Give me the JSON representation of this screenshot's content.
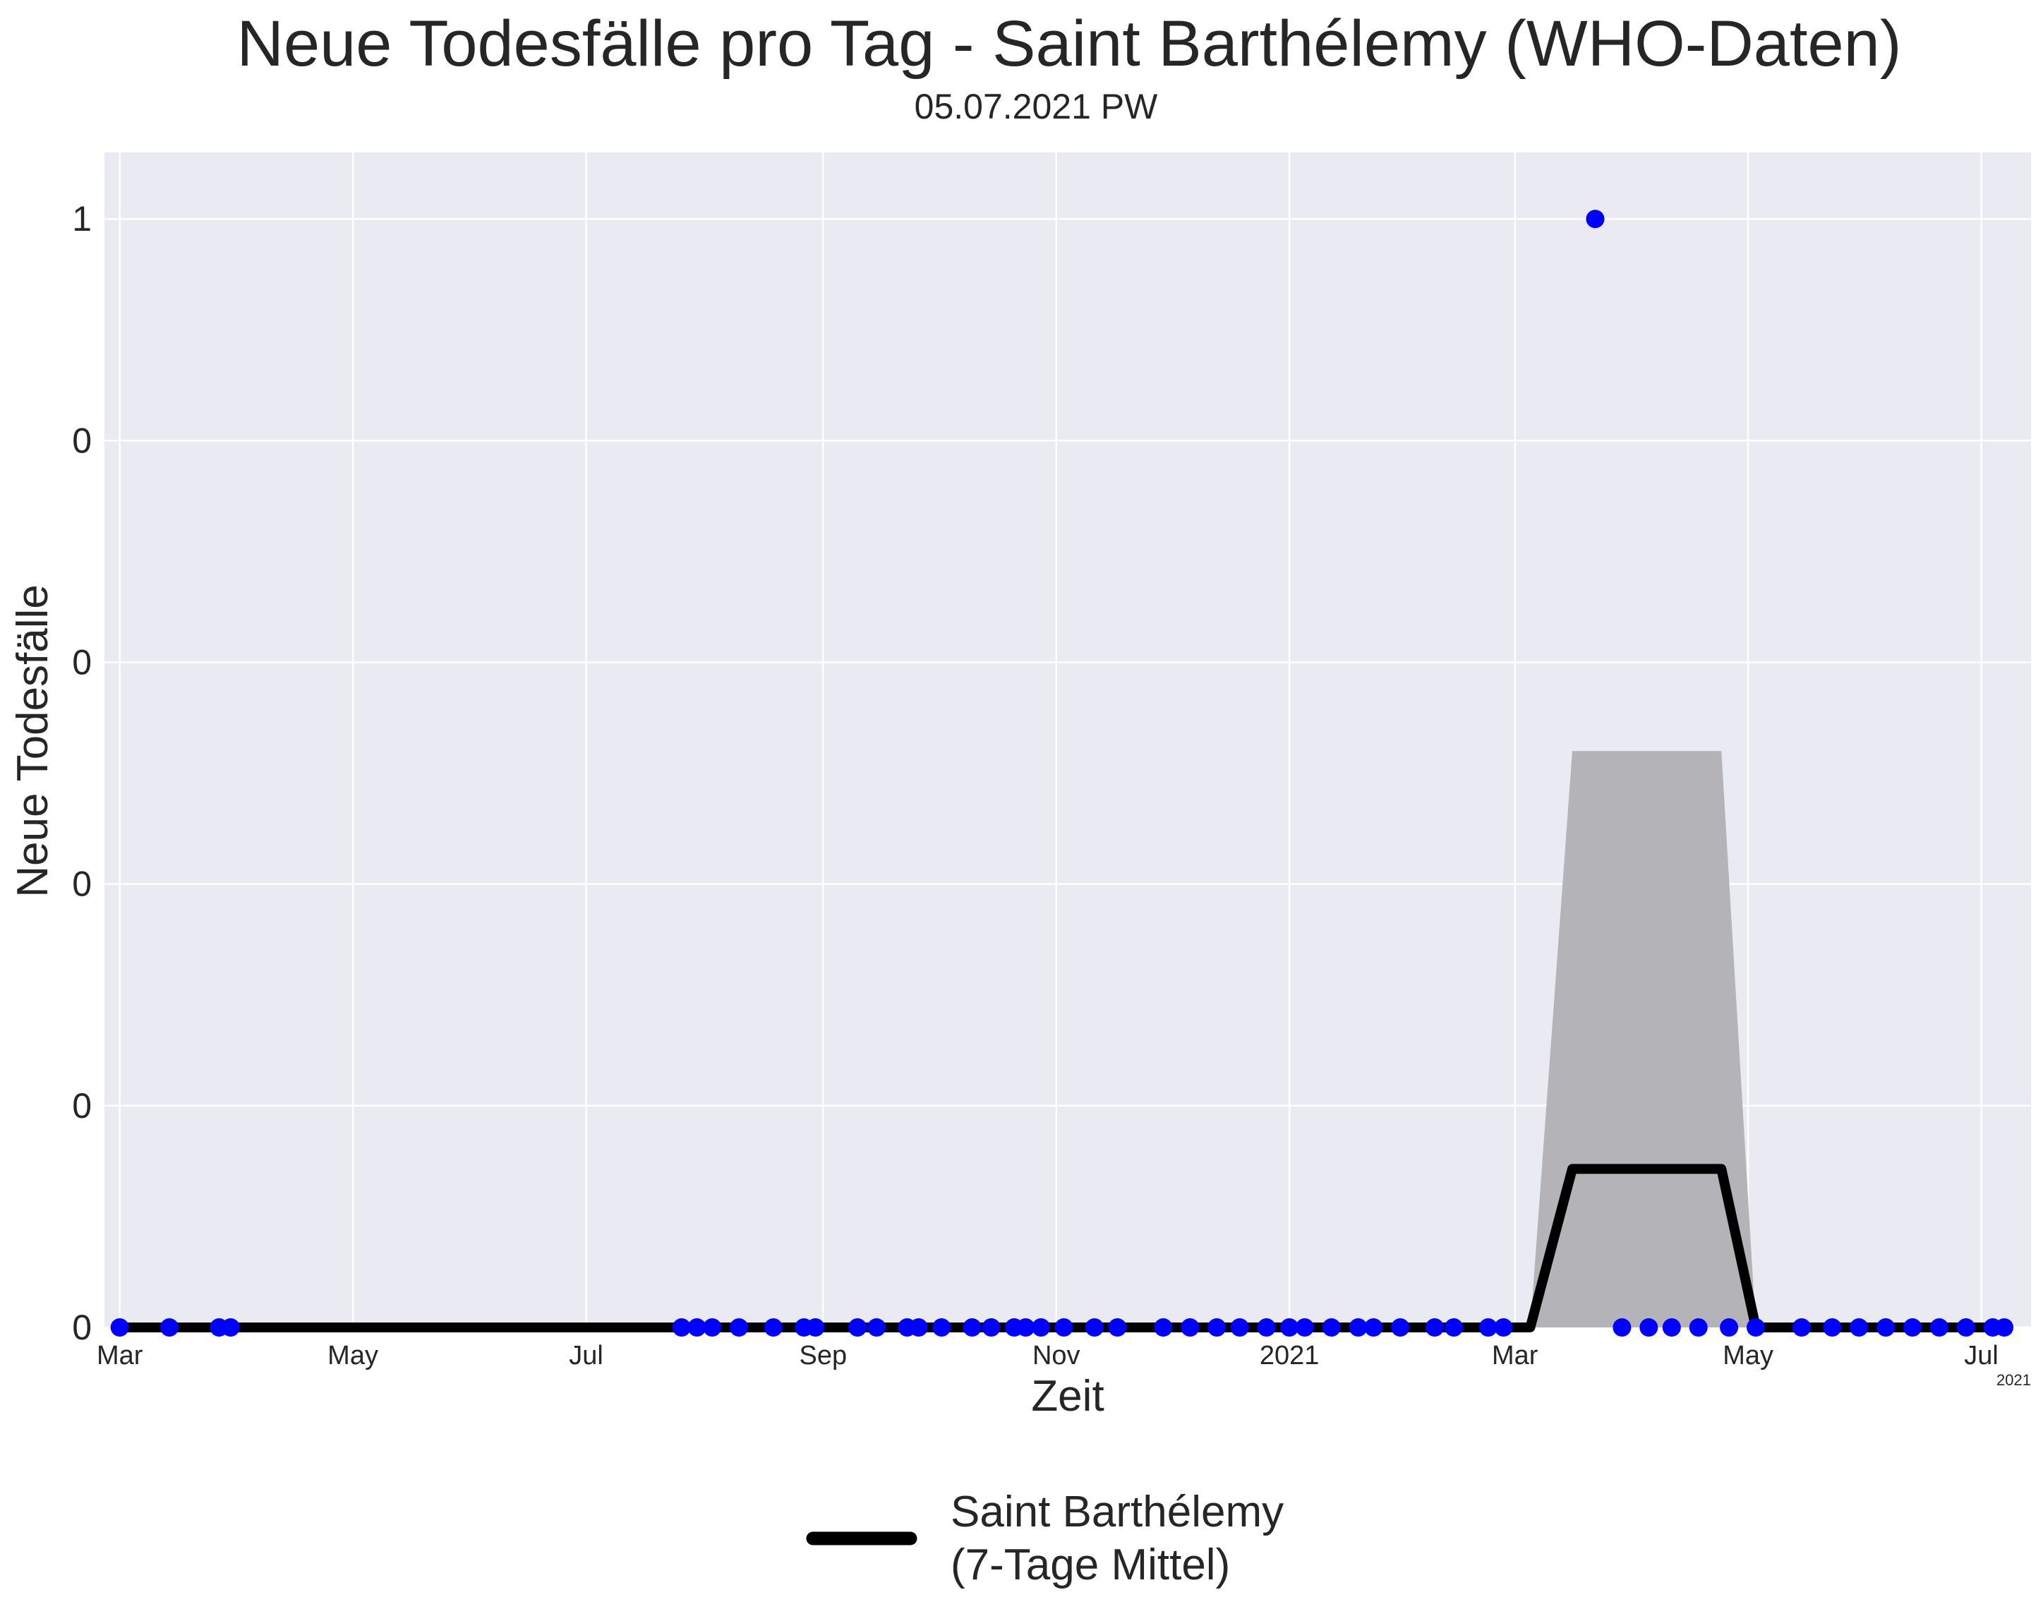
{
  "chart_data": {
    "type": "line",
    "title": "Neue Todesfälle pro Tag - Saint Barthélemy (WHO-Daten)",
    "subtitle": "05.07.2021 PW",
    "xlabel": "Zeit",
    "ylabel": "Neue Todesfälle",
    "x_range": [
      "2020-02-26",
      "2021-07-14"
    ],
    "y_range": [
      0,
      1.06
    ],
    "x_ticks": [
      {
        "date": "2020-03-01",
        "label": "Mar"
      },
      {
        "date": "2020-05-01",
        "label": "May"
      },
      {
        "date": "2020-07-01",
        "label": "Jul"
      },
      {
        "date": "2020-09-01",
        "label": "Sep"
      },
      {
        "date": "2020-11-01",
        "label": "Nov"
      },
      {
        "date": "2021-01-01",
        "label": "2021"
      },
      {
        "date": "2021-03-01",
        "label": "Mar"
      },
      {
        "date": "2021-05-01",
        "label": "May"
      },
      {
        "date": "2021-07-01",
        "label": "Jul"
      }
    ],
    "x_offset_label": "2021",
    "y_ticks": [
      {
        "value": 0.0,
        "label": "0"
      },
      {
        "value": 0.2,
        "label": "0"
      },
      {
        "value": 0.4,
        "label": "0"
      },
      {
        "value": 0.6,
        "label": "0"
      },
      {
        "value": 0.8,
        "label": "0"
      },
      {
        "value": 1.0,
        "label": "1"
      }
    ],
    "grid": true,
    "legend_position": "bottom-center",
    "colors": {
      "background": "#eaeaf2",
      "grid": "#ffffff",
      "points": "#0000ff",
      "line": "#000000",
      "band": "#b4b4b8"
    },
    "series": [
      {
        "kind": "points",
        "x": [
          "2020-03-01",
          "2020-03-14",
          "2020-03-27",
          "2020-03-30",
          "2020-07-26",
          "2020-07-30",
          "2020-08-03",
          "2020-08-10",
          "2020-08-19",
          "2020-08-27",
          "2020-08-30",
          "2020-09-10",
          "2020-09-15",
          "2020-09-23",
          "2020-09-26",
          "2020-10-02",
          "2020-10-10",
          "2020-10-15",
          "2020-10-21",
          "2020-10-24",
          "2020-10-28",
          "2020-11-03",
          "2020-11-11",
          "2020-11-17",
          "2020-11-29",
          "2020-12-06",
          "2020-12-13",
          "2020-12-19",
          "2020-12-26",
          "2021-01-01",
          "2021-01-05",
          "2021-01-12",
          "2021-01-19",
          "2021-01-23",
          "2021-01-30",
          "2021-02-08",
          "2021-02-13",
          "2021-02-22",
          "2021-02-26",
          "2021-03-22",
          "2021-03-29",
          "2021-04-05",
          "2021-04-11",
          "2021-04-18",
          "2021-04-26",
          "2021-05-03",
          "2021-05-15",
          "2021-05-23",
          "2021-05-30",
          "2021-06-06",
          "2021-06-13",
          "2021-06-20",
          "2021-06-27",
          "2021-07-04",
          "2021-07-07"
        ],
        "y": [
          0,
          0,
          0,
          0,
          0,
          0,
          0,
          0,
          0,
          0,
          0,
          0,
          0,
          0,
          0,
          0,
          0,
          0,
          0,
          0,
          0,
          0,
          0,
          0,
          0,
          0,
          0,
          0,
          0,
          0,
          0,
          0,
          0,
          0,
          0,
          0,
          0,
          0,
          0,
          1,
          0,
          0,
          0,
          0,
          0,
          0,
          0,
          0,
          0,
          0,
          0,
          0,
          0,
          0,
          0
        ]
      },
      {
        "name": "Saint Barthélemy\n(7-Tage Mittel)",
        "kind": "line",
        "x": [
          "2020-03-01",
          "2021-03-05",
          "2021-03-16",
          "2021-04-24",
          "2021-05-03",
          "2021-07-07"
        ],
        "y": [
          0,
          0,
          0.143,
          0.143,
          0,
          0
        ]
      },
      {
        "kind": "band",
        "x": [
          "2021-03-05",
          "2021-03-16",
          "2021-04-24",
          "2021-05-03"
        ],
        "lower": [
          0,
          0,
          0,
          0
        ],
        "upper": [
          0,
          0.52,
          0.52,
          0
        ]
      }
    ]
  },
  "legend": {
    "line1": "Saint Barthélemy",
    "line2": "(7-Tage Mittel)"
  }
}
